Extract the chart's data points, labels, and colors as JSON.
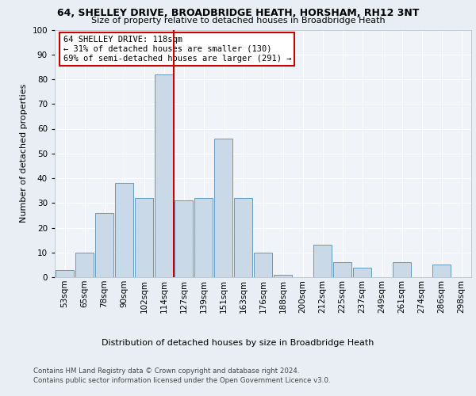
{
  "title1": "64, SHELLEY DRIVE, BROADBRIDGE HEATH, HORSHAM, RH12 3NT",
  "title2": "Size of property relative to detached houses in Broadbridge Heath",
  "xlabel": "Distribution of detached houses by size in Broadbridge Heath",
  "ylabel": "Number of detached properties",
  "annotation_line1": "64 SHELLEY DRIVE: 118sqm",
  "annotation_line2": "← 31% of detached houses are smaller (130)",
  "annotation_line3": "69% of semi-detached houses are larger (291) →",
  "footer1": "Contains HM Land Registry data © Crown copyright and database right 2024.",
  "footer2": "Contains public sector information licensed under the Open Government Licence v3.0.",
  "bar_labels": [
    "53sqm",
    "65sqm",
    "78sqm",
    "90sqm",
    "102sqm",
    "114sqm",
    "127sqm",
    "139sqm",
    "151sqm",
    "163sqm",
    "176sqm",
    "188sqm",
    "200sqm",
    "212sqm",
    "225sqm",
    "237sqm",
    "249sqm",
    "261sqm",
    "274sqm",
    "286sqm",
    "298sqm"
  ],
  "bar_values": [
    3,
    10,
    26,
    38,
    32,
    82,
    31,
    32,
    56,
    32,
    10,
    1,
    0,
    13,
    6,
    4,
    0,
    6,
    0,
    5,
    0
  ],
  "bar_color": "#c9d9e8",
  "bar_edge_color": "#6699bb",
  "vline_x": 5.5,
  "vline_color": "#cc0000",
  "annotation_box_color": "#cc0000",
  "background_color": "#e8eef4",
  "plot_bg_color": "#f0f4f8",
  "ylim": [
    0,
    100
  ],
  "yticks": [
    0,
    10,
    20,
    30,
    40,
    50,
    60,
    70,
    80,
    90,
    100
  ],
  "title1_fontsize": 9,
  "title2_fontsize": 8,
  "ylabel_fontsize": 8,
  "xlabel_fontsize": 8,
  "tick_fontsize": 7.5,
  "footer_fontsize": 6.2
}
